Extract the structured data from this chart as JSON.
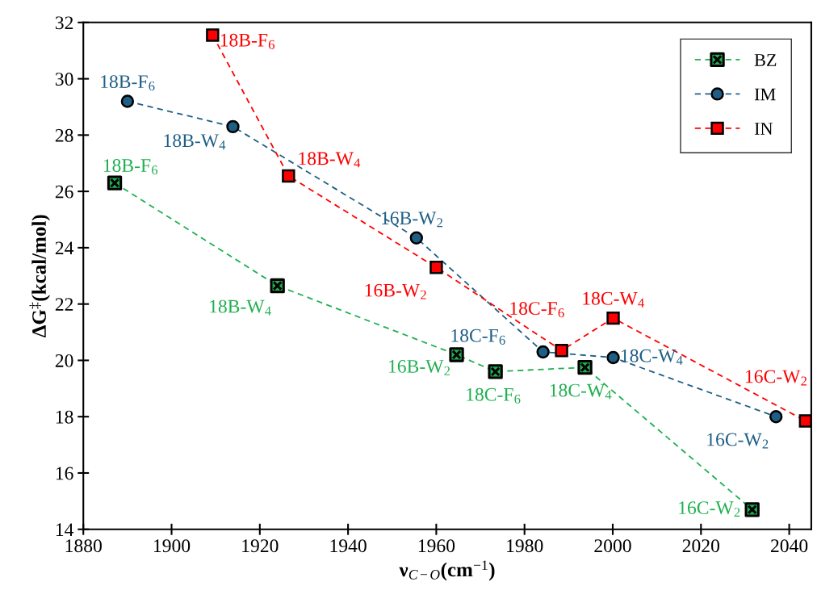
{
  "chart_data": {
    "type": "line",
    "xlabel": "ν$_{C−O}$(cm$^{−1}$)",
    "ylabel": "ΔG$^{‡}$(kcal/mol)",
    "xlim": [
      1880,
      2045
    ],
    "xticks": [
      1880,
      1900,
      1920,
      1940,
      1960,
      1980,
      2000,
      2020,
      2040
    ],
    "ylim": [
      14,
      32
    ],
    "yticks": [
      14,
      16,
      18,
      20,
      22,
      24,
      26,
      28,
      30,
      32
    ],
    "grid": false,
    "legend": "top right",
    "line_style": "dashed",
    "series": [
      {
        "name": "BZ",
        "color": "#20b050",
        "marker": "cross",
        "x": [
          1887.1,
          1924,
          1964.6,
          1973.4,
          1993.7,
          2031.6
        ],
        "values": [
          26.3,
          22.65,
          20.2,
          19.6,
          19.75,
          14.7
        ]
      },
      {
        "name": "IM",
        "color": "#1f5f86",
        "marker": "circle",
        "x": [
          1890,
          1913.9,
          1955.5,
          1984.2,
          2000.1,
          2037
        ],
        "values": [
          29.2,
          28.3,
          24.35,
          20.3,
          20.1,
          18.0
        ]
      },
      {
        "name": "IN",
        "color": "#ff0000",
        "marker": "square",
        "x": [
          1909.3,
          1926.5,
          1960,
          1988.4,
          2000.1,
          2043.7
        ],
        "values": [
          31.55,
          26.55,
          23.3,
          20.35,
          21.5,
          17.85
        ]
      }
    ],
    "annotations": [
      {
        "text": "18B-F$_{6}$",
        "x": 1887.1,
        "y": 26.3
      },
      {
        "text": "18B-W$_{4}$",
        "x": 1924,
        "y": 22.65
      },
      {
        "text": "16B-W$_{2}$",
        "x": 1964.6,
        "y": 20.2
      },
      {
        "text": "18C-F$_{6}$",
        "x": 1973.4,
        "y": 19.6
      },
      {
        "text": "18C-W$_{4}$",
        "x": 1993.7,
        "y": 19.75
      },
      {
        "text": "16C-W$_{2}$",
        "x": 2031.6,
        "y": 14.7
      },
      {
        "text": "18B-F$_{6}$",
        "x": 1890,
        "y": 29.2
      },
      {
        "text": "18B-W$_{4}$",
        "x": 1913.9,
        "y": 28.3
      },
      {
        "text": "16B-W$_{2}$",
        "x": 1955.5,
        "y": 24.35
      },
      {
        "text": "18C-F$_{6}$",
        "x": 1984.2,
        "y": 20.3
      },
      {
        "text": "18C-W$_{4}$",
        "x": 2000.1,
        "y": 20.1
      },
      {
        "text": "16C-W$_{2}$",
        "x": 2037,
        "y": 18.0
      },
      {
        "text": "18B-F$_{6}$",
        "x": 1909.3,
        "y": 31.55
      },
      {
        "text": "18B-W$_{4}$",
        "x": 1926.5,
        "y": 26.55
      },
      {
        "text": "16B-W$_{2}$",
        "x": 1960,
        "y": 23.3
      },
      {
        "text": "18C-F$_{6}$",
        "x": 1988.4,
        "y": 20.35
      },
      {
        "text": "18C-W$_{4}$",
        "x": 2000.1,
        "y": 21.5
      },
      {
        "text": "16C-W$_{2}$",
        "x": 2043.7,
        "y": 17.85
      }
    ]
  }
}
